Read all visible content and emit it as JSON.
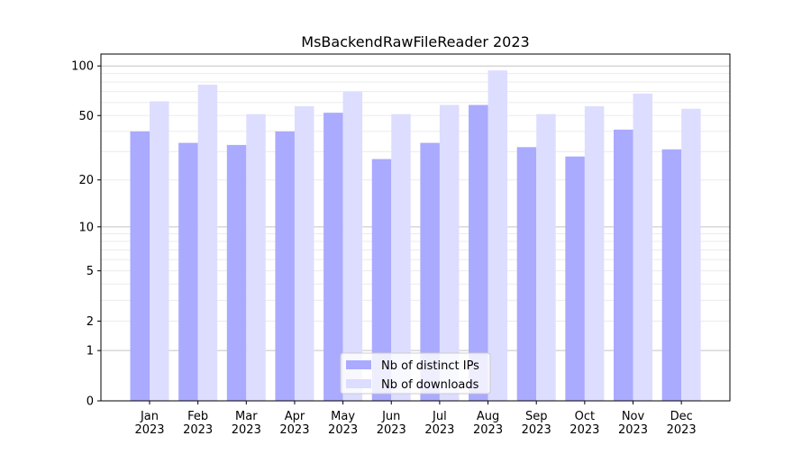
{
  "chart_data": {
    "type": "bar",
    "title": "MsBackendRawFileReader 2023",
    "xlabel": "",
    "ylabel": "",
    "y_scale": "log10(1+y)",
    "ylim": [
      0,
      118
    ],
    "y_ticks": [
      0,
      1,
      2,
      5,
      10,
      20,
      50,
      100
    ],
    "y_tick_labels": [
      "0",
      "1",
      "2",
      "5",
      "10",
      "20",
      "50",
      "100"
    ],
    "grid": true,
    "legend_position": "bottom-center",
    "categories": [
      "Jan\n2023",
      "Feb\n2023",
      "Mar\n2023",
      "Apr\n2023",
      "May\n2023",
      "Jun\n2023",
      "Jul\n2023",
      "Aug\n2023",
      "Sep\n2023",
      "Oct\n2023",
      "Nov\n2023",
      "Dec\n2023"
    ],
    "series": [
      {
        "name": "Nb of distinct IPs",
        "color": "#aaaaff",
        "values": [
          40,
          34,
          33,
          40,
          52,
          27,
          34,
          58,
          32,
          28,
          41,
          31
        ]
      },
      {
        "name": "Nb of downloads",
        "color": "#ddddff",
        "values": [
          61,
          77,
          51,
          57,
          70,
          51,
          58,
          94,
          51,
          57,
          68,
          55
        ]
      }
    ]
  }
}
